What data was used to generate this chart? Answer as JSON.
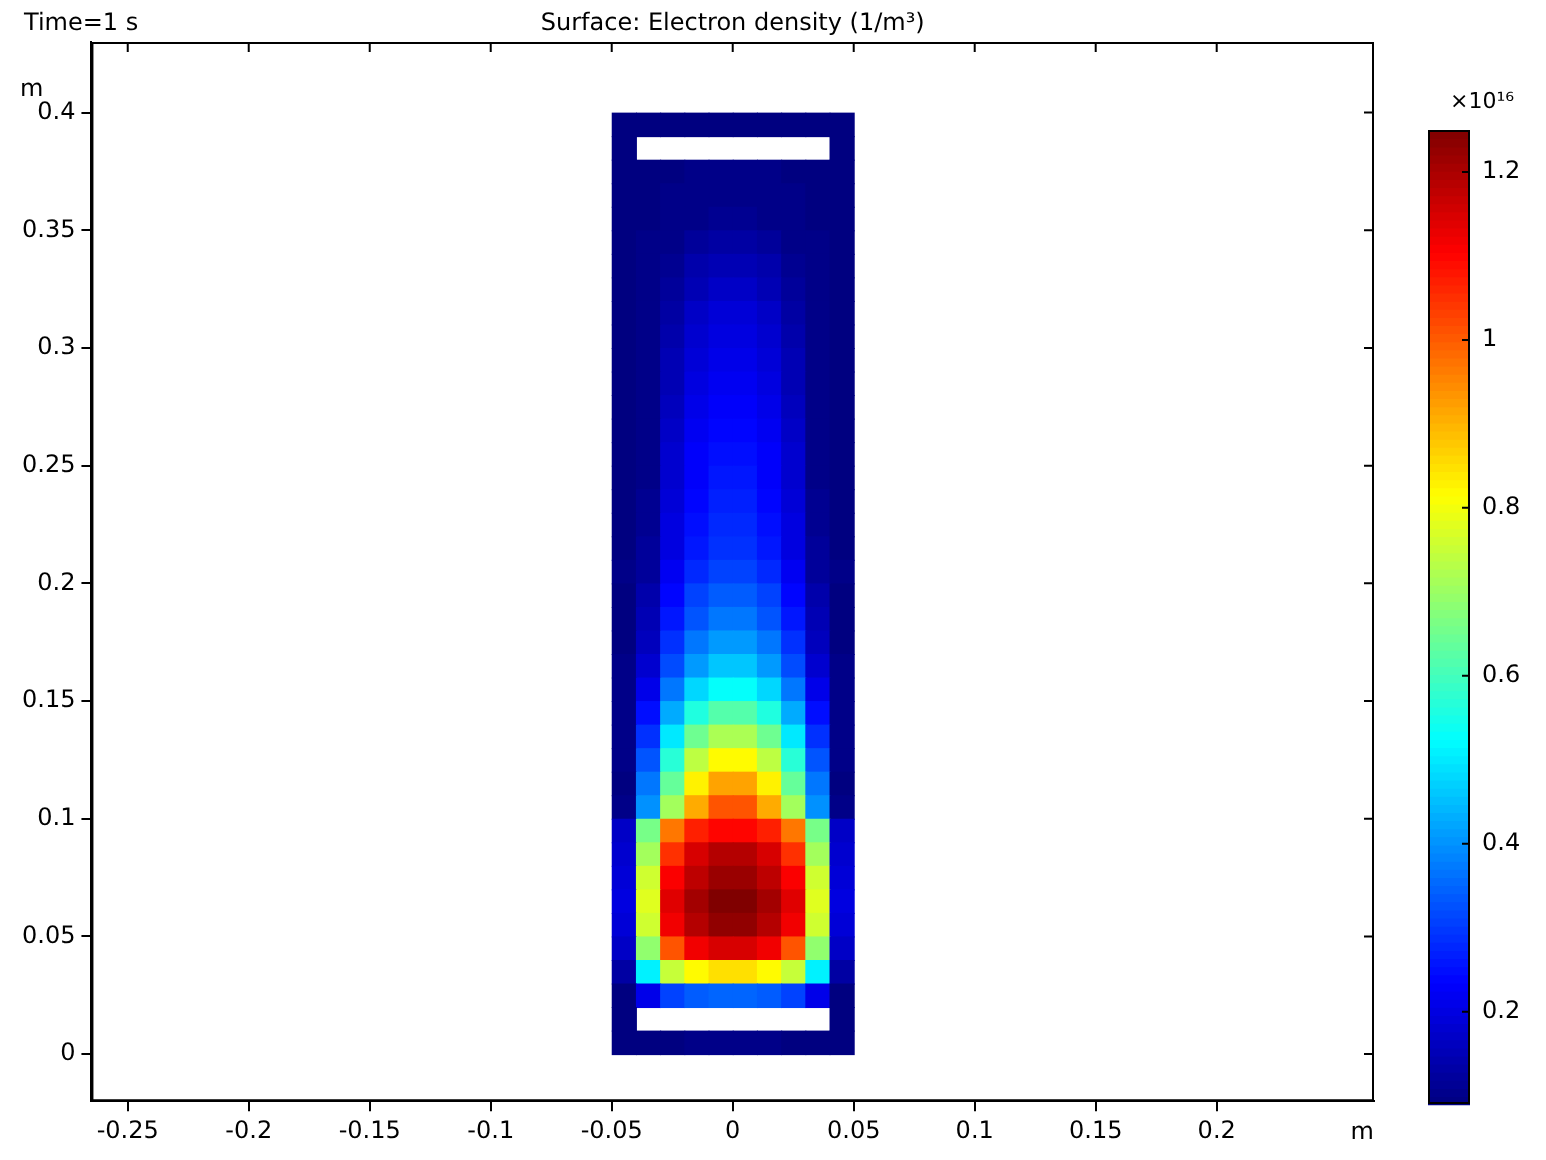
{
  "chart_data": {
    "type": "heatmap",
    "title": "Surface: Electron density (1/m³)",
    "xlabel": "m",
    "ylabel": "m",
    "clabel": "×10¹⁶",
    "annotations": [
      "Time=1 s"
    ],
    "x": [
      -0.045,
      -0.035,
      -0.025,
      -0.015,
      -0.005,
      0.005,
      0.015,
      0.025,
      0.035,
      0.045
    ],
    "y": [
      0.395,
      0.385,
      0.375,
      0.365,
      0.355,
      0.345,
      0.335,
      0.325,
      0.315,
      0.305,
      0.295,
      0.285,
      0.275,
      0.265,
      0.255,
      0.245,
      0.235,
      0.225,
      0.215,
      0.205,
      0.195,
      0.185,
      0.175,
      0.165,
      0.155,
      0.145,
      0.135,
      0.125,
      0.115,
      0.105,
      0.095,
      0.085,
      0.075,
      0.065,
      0.055,
      0.045,
      0.035,
      0.025,
      0.015,
      0.005
    ],
    "cells": [
      [
        0.09,
        0.09,
        0.09,
        0.09,
        0.09,
        0.09,
        0.09,
        0.09,
        0.09,
        0.09
      ],
      [
        0.09,
        null,
        null,
        null,
        null,
        null,
        null,
        null,
        null,
        0.09
      ],
      [
        0.09,
        0.09,
        0.09,
        0.1,
        0.1,
        0.1,
        0.1,
        0.09,
        0.09,
        0.09
      ],
      [
        0.09,
        0.09,
        0.1,
        0.1,
        0.1,
        0.1,
        0.1,
        0.1,
        0.09,
        0.09
      ],
      [
        0.09,
        0.09,
        0.1,
        0.1,
        0.11,
        0.11,
        0.1,
        0.1,
        0.09,
        0.09
      ],
      [
        0.09,
        0.1,
        0.1,
        0.12,
        0.13,
        0.13,
        0.12,
        0.1,
        0.1,
        0.09
      ],
      [
        0.09,
        0.1,
        0.11,
        0.14,
        0.15,
        0.15,
        0.14,
        0.11,
        0.1,
        0.09
      ],
      [
        0.09,
        0.1,
        0.12,
        0.15,
        0.17,
        0.17,
        0.15,
        0.12,
        0.1,
        0.09
      ],
      [
        0.09,
        0.1,
        0.13,
        0.17,
        0.19,
        0.19,
        0.17,
        0.13,
        0.1,
        0.09
      ],
      [
        0.09,
        0.1,
        0.14,
        0.18,
        0.2,
        0.2,
        0.18,
        0.14,
        0.1,
        0.09
      ],
      [
        0.09,
        0.1,
        0.15,
        0.19,
        0.21,
        0.21,
        0.19,
        0.15,
        0.1,
        0.09
      ],
      [
        0.09,
        0.1,
        0.15,
        0.2,
        0.22,
        0.22,
        0.2,
        0.15,
        0.1,
        0.09
      ],
      [
        0.09,
        0.1,
        0.16,
        0.21,
        0.23,
        0.23,
        0.21,
        0.16,
        0.1,
        0.09
      ],
      [
        0.09,
        0.1,
        0.17,
        0.22,
        0.24,
        0.24,
        0.22,
        0.17,
        0.1,
        0.09
      ],
      [
        0.09,
        0.1,
        0.18,
        0.23,
        0.25,
        0.25,
        0.23,
        0.18,
        0.1,
        0.09
      ],
      [
        0.09,
        0.1,
        0.18,
        0.23,
        0.26,
        0.26,
        0.23,
        0.18,
        0.1,
        0.09
      ],
      [
        0.09,
        0.11,
        0.19,
        0.24,
        0.27,
        0.27,
        0.24,
        0.19,
        0.11,
        0.09
      ],
      [
        0.09,
        0.11,
        0.2,
        0.25,
        0.28,
        0.28,
        0.25,
        0.2,
        0.11,
        0.09
      ],
      [
        0.09,
        0.12,
        0.2,
        0.26,
        0.29,
        0.29,
        0.26,
        0.2,
        0.12,
        0.09
      ],
      [
        0.1,
        0.12,
        0.22,
        0.28,
        0.31,
        0.31,
        0.28,
        0.22,
        0.12,
        0.1
      ],
      [
        0.09,
        0.14,
        0.24,
        0.31,
        0.34,
        0.34,
        0.31,
        0.24,
        0.14,
        0.09
      ],
      [
        0.09,
        0.15,
        0.26,
        0.33,
        0.37,
        0.37,
        0.33,
        0.26,
        0.15,
        0.09
      ],
      [
        0.09,
        0.16,
        0.29,
        0.37,
        0.41,
        0.41,
        0.37,
        0.29,
        0.16,
        0.09
      ],
      [
        0.1,
        0.18,
        0.32,
        0.41,
        0.46,
        0.46,
        0.41,
        0.32,
        0.18,
        0.1
      ],
      [
        0.1,
        0.21,
        0.37,
        0.48,
        0.53,
        0.53,
        0.48,
        0.37,
        0.21,
        0.1
      ],
      [
        0.1,
        0.25,
        0.43,
        0.56,
        0.62,
        0.62,
        0.56,
        0.43,
        0.25,
        0.1
      ],
      [
        0.1,
        0.29,
        0.5,
        0.65,
        0.72,
        0.72,
        0.65,
        0.5,
        0.29,
        0.1
      ],
      [
        0.1,
        0.33,
        0.57,
        0.74,
        0.82,
        0.82,
        0.74,
        0.57,
        0.33,
        0.1
      ],
      [
        0.09,
        0.37,
        0.64,
        0.83,
        0.92,
        0.92,
        0.83,
        0.64,
        0.37,
        0.09
      ],
      [
        0.1,
        0.4,
        0.71,
        0.91,
        1.01,
        1.01,
        0.91,
        0.71,
        0.4,
        0.1
      ],
      [
        0.17,
        0.66,
        0.97,
        1.07,
        1.1,
        1.1,
        1.07,
        0.97,
        0.66,
        0.17
      ],
      [
        0.18,
        0.71,
        1.05,
        1.15,
        1.19,
        1.19,
        1.15,
        1.05,
        0.71,
        0.18
      ],
      [
        0.19,
        0.76,
        1.11,
        1.18,
        1.22,
        1.22,
        1.18,
        1.11,
        0.76,
        0.19
      ],
      [
        0.2,
        0.78,
        1.14,
        1.21,
        1.25,
        1.25,
        1.21,
        1.14,
        0.78,
        0.2
      ],
      [
        0.19,
        0.76,
        1.12,
        1.19,
        1.23,
        1.23,
        1.19,
        1.12,
        0.76,
        0.19
      ],
      [
        0.17,
        0.69,
        1.01,
        1.12,
        1.15,
        1.15,
        1.12,
        1.01,
        0.69,
        0.17
      ],
      [
        0.13,
        0.51,
        0.75,
        0.82,
        0.85,
        0.85,
        0.82,
        0.75,
        0.51,
        0.13
      ],
      [
        0.09,
        0.21,
        0.31,
        0.34,
        0.35,
        0.35,
        0.34,
        0.31,
        0.21,
        0.09
      ],
      [
        0.09,
        null,
        null,
        null,
        null,
        null,
        null,
        null,
        null,
        0.09
      ],
      [
        0.09,
        0.09,
        0.09,
        0.1,
        0.1,
        0.1,
        0.1,
        0.09,
        0.09,
        0.09
      ]
    ],
    "clim": [
      0.09,
      1.25
    ],
    "cticks": [
      0.2,
      0.4,
      0.6,
      0.8,
      1,
      1.2
    ],
    "xlim": [
      -0.265,
      0.265
    ],
    "xticks": [
      -0.25,
      -0.2,
      -0.15,
      -0.1,
      -0.05,
      0,
      0.05,
      0.1,
      0.15,
      0.2
    ],
    "ylim": [
      -0.02,
      0.43
    ],
    "yticks": [
      0,
      0.05,
      0.1,
      0.15,
      0.2,
      0.25,
      0.3,
      0.35,
      0.4
    ],
    "grid": false,
    "legend": false
  }
}
